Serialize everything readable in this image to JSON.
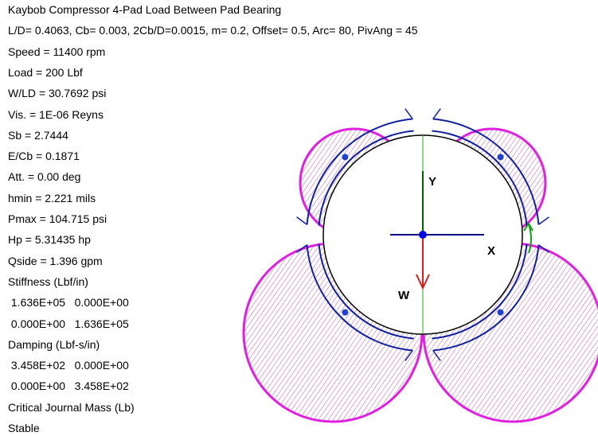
{
  "header": {
    "title": "Kaybob Compressor 4-Pad Load Between Pad Bearing",
    "subtitle": "L/D= 0.4063, Cb= 0.003, 2Cb/D=0.0015, m= 0.2, Offset= 0.5, Arc= 80, PivAng = 45"
  },
  "results": [
    "Speed = 11400 rpm",
    "Load = 200 Lbf",
    "W/LD = 30.7692 psi",
    "Vis. = 1E-06 Reyns",
    "Sb = 2.7444",
    "E/Cb = 0.1871",
    "Att. = 0.00 deg",
    "hmin = 2.221 mils",
    "Pmax = 104.715 psi",
    "Hp = 5.31435 hp",
    "Qside = 1.396 gpm"
  ],
  "stiffness": {
    "label": "Stiffness (Lbf/in)",
    "rows": [
      " 1.636E+05   0.000E+00",
      " 0.000E+00   1.636E+05"
    ]
  },
  "damping": {
    "label": "Damping (Lbf-s/in)",
    "rows": [
      " 3.458E+02   0.000E+00",
      " 0.000E+00   3.458E+02"
    ]
  },
  "critical": "Critical Journal Mass (Lb)",
  "status": "Stable",
  "diagram": {
    "y_label": "Y",
    "x_label": "X",
    "w_label": "W"
  }
}
